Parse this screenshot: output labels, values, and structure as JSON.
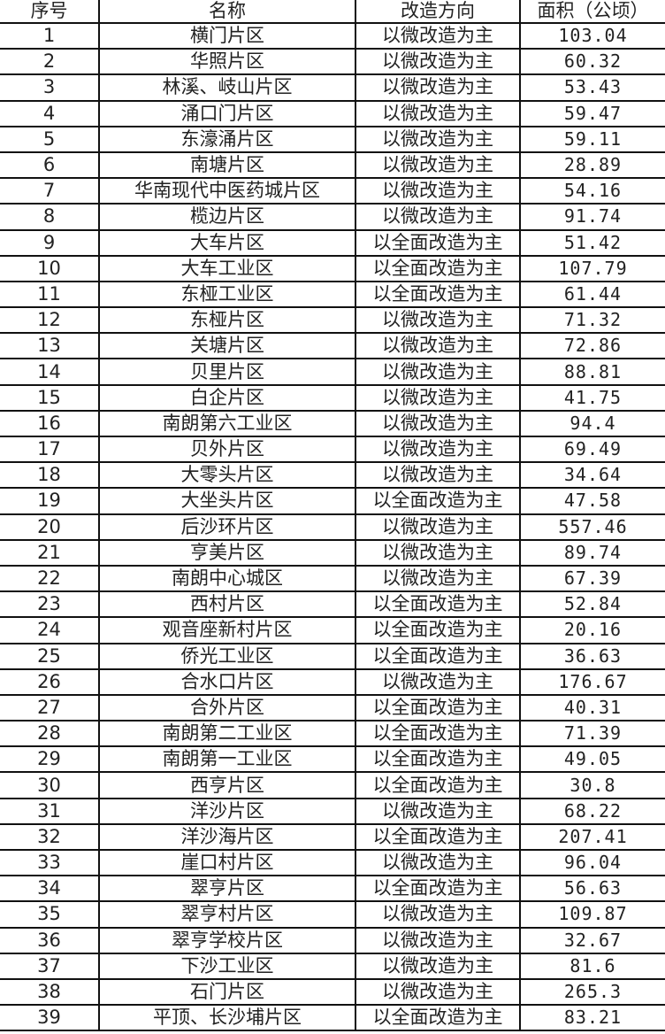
{
  "table": {
    "headers": [
      "序号",
      "名称",
      "改造方向",
      "面积（公顷）"
    ],
    "rows": [
      [
        "1",
        "横门片区",
        "以微改造为主",
        "103.04"
      ],
      [
        "2",
        "华照片区",
        "以微改造为主",
        "60.32"
      ],
      [
        "3",
        "林溪、岐山片区",
        "以微改造为主",
        "53.43"
      ],
      [
        "4",
        "涌口门片区",
        "以微改造为主",
        "59.47"
      ],
      [
        "5",
        "东濠涌片区",
        "以微改造为主",
        "59.11"
      ],
      [
        "6",
        "南塘片区",
        "以微改造为主",
        "28.89"
      ],
      [
        "7",
        "华南现代中医药城片区",
        "以微改造为主",
        "54.16"
      ],
      [
        "8",
        "榄边片区",
        "以微改造为主",
        "91.74"
      ],
      [
        "9",
        "大车片区",
        "以全面改造为主",
        "51.42"
      ],
      [
        "10",
        "大车工业区",
        "以全面改造为主",
        "107.79"
      ],
      [
        "11",
        "东桠工业区",
        "以全面改造为主",
        "61.44"
      ],
      [
        "12",
        "东桠片区",
        "以微改造为主",
        "71.32"
      ],
      [
        "13",
        "关塘片区",
        "以微改造为主",
        "72.86"
      ],
      [
        "14",
        "贝里片区",
        "以微改造为主",
        "88.81"
      ],
      [
        "15",
        "白企片区",
        "以微改造为主",
        "41.75"
      ],
      [
        "16",
        "南朗第六工业区",
        "以微改造为主",
        "94.4"
      ],
      [
        "17",
        "贝外片区",
        "以微改造为主",
        "69.49"
      ],
      [
        "18",
        "大零头片区",
        "以微改造为主",
        "34.64"
      ],
      [
        "19",
        "大坐头片区",
        "以全面改造为主",
        "47.58"
      ],
      [
        "20",
        "后沙环片区",
        "以微改造为主",
        "557.46"
      ],
      [
        "21",
        "亨美片区",
        "以微改造为主",
        "89.74"
      ],
      [
        "22",
        "南朗中心城区",
        "以微改造为主",
        "67.39"
      ],
      [
        "23",
        "西村片区",
        "以全面改造为主",
        "52.84"
      ],
      [
        "24",
        "观音座新村片区",
        "以全面改造为主",
        "20.16"
      ],
      [
        "25",
        "侨光工业区",
        "以全面改造为主",
        "36.63"
      ],
      [
        "26",
        "合水口片区",
        "以微改造为主",
        "176.67"
      ],
      [
        "27",
        "合外片区",
        "以全面改造为主",
        "40.31"
      ],
      [
        "28",
        "南朗第二工业区",
        "以全面改造为主",
        "71.39"
      ],
      [
        "29",
        "南朗第一工业区",
        "以全面改造为主",
        "49.05"
      ],
      [
        "30",
        "西亨片区",
        "以全面改造为主",
        "30.8"
      ],
      [
        "31",
        "洋沙片区",
        "以微改造为主",
        "68.22"
      ],
      [
        "32",
        "洋沙海片区",
        "以全面改造为主",
        "207.41"
      ],
      [
        "33",
        "崖口村片区",
        "以微改造为主",
        "96.04"
      ],
      [
        "34",
        "翠亨片区",
        "以全面改造为主",
        "56.63"
      ],
      [
        "35",
        "翠亨村片区",
        "以微改造为主",
        "109.87"
      ],
      [
        "36",
        "翠亨学校片区",
        "以微改造为主",
        "32.67"
      ],
      [
        "37",
        "下沙工业区",
        "以微改造为主",
        "81.6"
      ],
      [
        "38",
        "石门片区",
        "以微改造为主",
        "265.3"
      ],
      [
        "39",
        "平顶、长沙埔片区",
        "以全面改造为主",
        "83.21"
      ]
    ]
  }
}
